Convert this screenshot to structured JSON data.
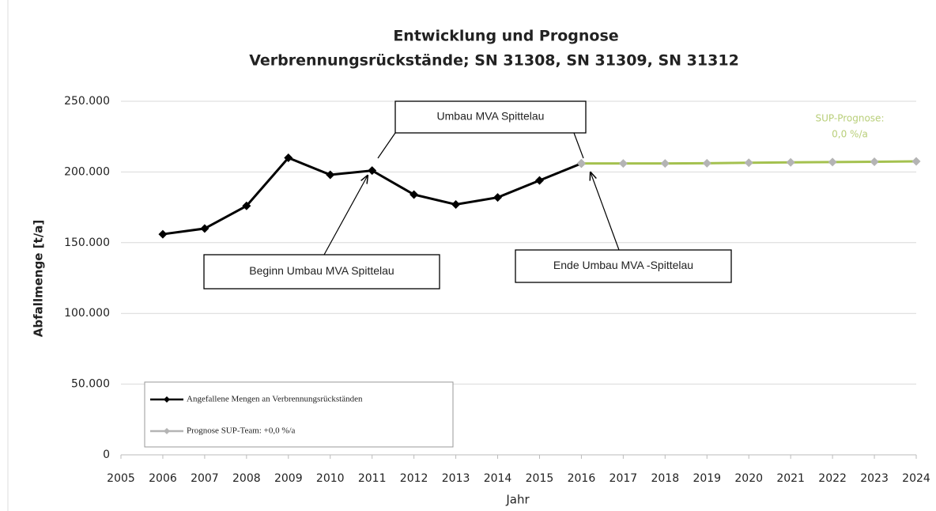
{
  "chart_data": {
    "type": "line",
    "title": [
      "Entwicklung und Prognose",
      "Verbrennungsrückstände; SN 31308, SN 31309, SN 31312"
    ],
    "y_label": "Abfallmenge [t/a]",
    "x_label": "Jahr",
    "xlim": [
      2005,
      2024
    ],
    "xticks": [
      2005,
      2006,
      2007,
      2008,
      2009,
      2010,
      2011,
      2012,
      2013,
      2014,
      2015,
      2016,
      2017,
      2018,
      2019,
      2020,
      2021,
      2022,
      2023,
      2024
    ],
    "ylim": [
      0,
      250000
    ],
    "yticks": [
      0,
      {
        "value": 50000,
        "label": "50.000"
      },
      {
        "value": 100000,
        "label": "100.000"
      },
      {
        "value": 150000,
        "label": "150.000"
      },
      {
        "value": 200000,
        "label": "200.000"
      },
      {
        "value": 250000,
        "label": "250.000"
      }
    ],
    "grid": true,
    "legend": "bottom-left",
    "series": [
      {
        "name": "Angefallene Mengen an Verbrennungsrückständen",
        "color": "#000000",
        "marker_color": "#000000",
        "x": [
          2006,
          2007,
          2008,
          2009,
          2010,
          2011,
          2012,
          2013,
          2014,
          2015,
          2016
        ],
        "values": [
          156000,
          160000,
          176000,
          210000,
          198000,
          201000,
          184000,
          177000,
          182000,
          194000,
          206000
        ]
      },
      {
        "name": "Prognose SUP-Team: +0,0 %/a",
        "color": "#a4c14f",
        "marker_color": "#b4b4b4",
        "x": [
          2016,
          2017,
          2018,
          2019,
          2020,
          2021,
          2022,
          2023,
          2024
        ],
        "values": [
          206000,
          206000,
          206000,
          206200,
          206500,
          206800,
          207000,
          207200,
          207500
        ]
      }
    ],
    "annotations": [
      "Umbau  MVA Spittelau",
      "Beginn Umbau  MVA Spittelau",
      "Ende Umbau MVA -Spittelau"
    ],
    "forecast_note": [
      "SUP-Prognose:",
      "0,0 %/a"
    ]
  }
}
